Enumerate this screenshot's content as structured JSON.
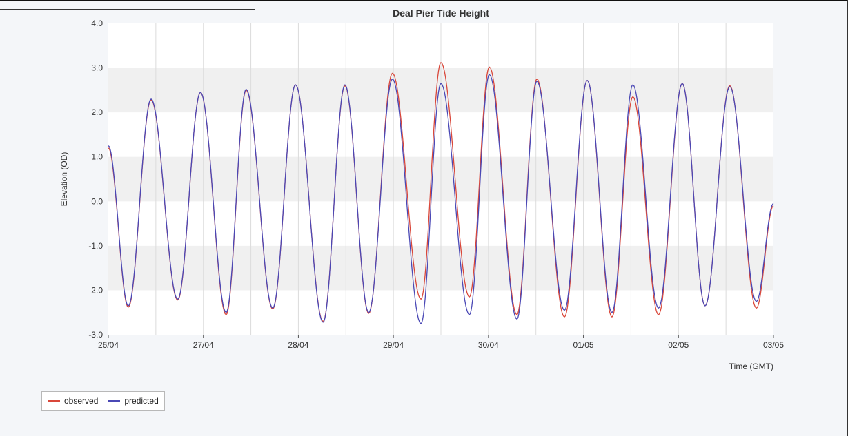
{
  "chart_data": {
    "type": "line",
    "title": "Deal Pier Tide Height",
    "ylabel": "Elevation (OD)",
    "xlabel": "Time (GMT)",
    "x_tick_labels": [
      "26/04",
      "27/04",
      "28/04",
      "29/04",
      "30/04",
      "01/05",
      "02/05",
      "03/05"
    ],
    "y_tick_labels": [
      "4.0",
      "3.0",
      "2.0",
      "1.0",
      "0.0",
      "-1.0",
      "-2.0",
      "-3.0"
    ],
    "ylim": [
      -3.0,
      4.0
    ],
    "xlim_days": [
      0,
      7
    ],
    "grid": "horizontal bands and vertical half-day lines",
    "legend_position": "bottom-left",
    "series": [
      {
        "name": "observed",
        "color": "#d9473a",
        "values": [
          [
            0.0,
            1.2
          ],
          [
            0.21,
            -2.38
          ],
          [
            0.45,
            2.28
          ],
          [
            0.73,
            -2.22
          ],
          [
            0.97,
            2.45
          ],
          [
            1.24,
            -2.55
          ],
          [
            1.45,
            2.5
          ],
          [
            1.73,
            -2.42
          ],
          [
            1.97,
            2.62
          ],
          [
            2.26,
            -2.7
          ],
          [
            2.49,
            2.6
          ],
          [
            2.74,
            -2.52
          ],
          [
            2.99,
            2.88
          ],
          [
            3.29,
            -2.2
          ],
          [
            3.5,
            3.12
          ],
          [
            3.8,
            -2.15
          ],
          [
            4.01,
            3.02
          ],
          [
            4.3,
            -2.55
          ],
          [
            4.51,
            2.75
          ],
          [
            4.8,
            -2.6
          ],
          [
            5.04,
            2.72
          ],
          [
            5.3,
            -2.6
          ],
          [
            5.52,
            2.35
          ],
          [
            5.79,
            -2.55
          ],
          [
            6.04,
            2.65
          ],
          [
            6.28,
            -2.35
          ],
          [
            6.54,
            2.6
          ],
          [
            6.82,
            -2.4
          ],
          [
            7.0,
            -0.1
          ]
        ]
      },
      {
        "name": "predicted",
        "color": "#4a48b5",
        "values": [
          [
            0.0,
            1.25
          ],
          [
            0.21,
            -2.35
          ],
          [
            0.45,
            2.3
          ],
          [
            0.73,
            -2.2
          ],
          [
            0.97,
            2.45
          ],
          [
            1.24,
            -2.5
          ],
          [
            1.45,
            2.52
          ],
          [
            1.73,
            -2.4
          ],
          [
            1.97,
            2.62
          ],
          [
            2.26,
            -2.72
          ],
          [
            2.49,
            2.62
          ],
          [
            2.74,
            -2.5
          ],
          [
            2.99,
            2.75
          ],
          [
            3.29,
            -2.75
          ],
          [
            3.5,
            2.65
          ],
          [
            3.8,
            -2.55
          ],
          [
            4.01,
            2.85
          ],
          [
            4.3,
            -2.65
          ],
          [
            4.51,
            2.7
          ],
          [
            4.8,
            -2.45
          ],
          [
            5.04,
            2.72
          ],
          [
            5.3,
            -2.5
          ],
          [
            5.52,
            2.62
          ],
          [
            5.79,
            -2.4
          ],
          [
            6.04,
            2.65
          ],
          [
            6.28,
            -2.35
          ],
          [
            6.54,
            2.58
          ],
          [
            6.82,
            -2.25
          ],
          [
            7.0,
            -0.05
          ]
        ]
      }
    ]
  }
}
